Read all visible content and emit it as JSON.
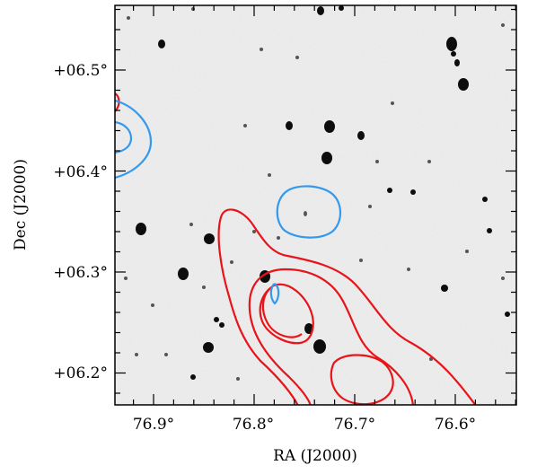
{
  "axes": {
    "x_title": "RA (J2000)",
    "y_title": "Dec (J2000)",
    "x_ticks": [
      "76.9°",
      "76.8°",
      "76.7°",
      "76.6°"
    ],
    "y_ticks": [
      "+06.5°",
      "+06.4°",
      "+06.3°",
      "+06.2°"
    ]
  },
  "colors": {
    "background": "#ffffff",
    "frame": "#000000",
    "image_bg": "#ededed",
    "source": "#0d0d0d",
    "contour_red": "#e8141a",
    "contour_blue": "#3399ee"
  },
  "image": {
    "description_type": "greyscale sky image with overlaid radio contours"
  }
}
